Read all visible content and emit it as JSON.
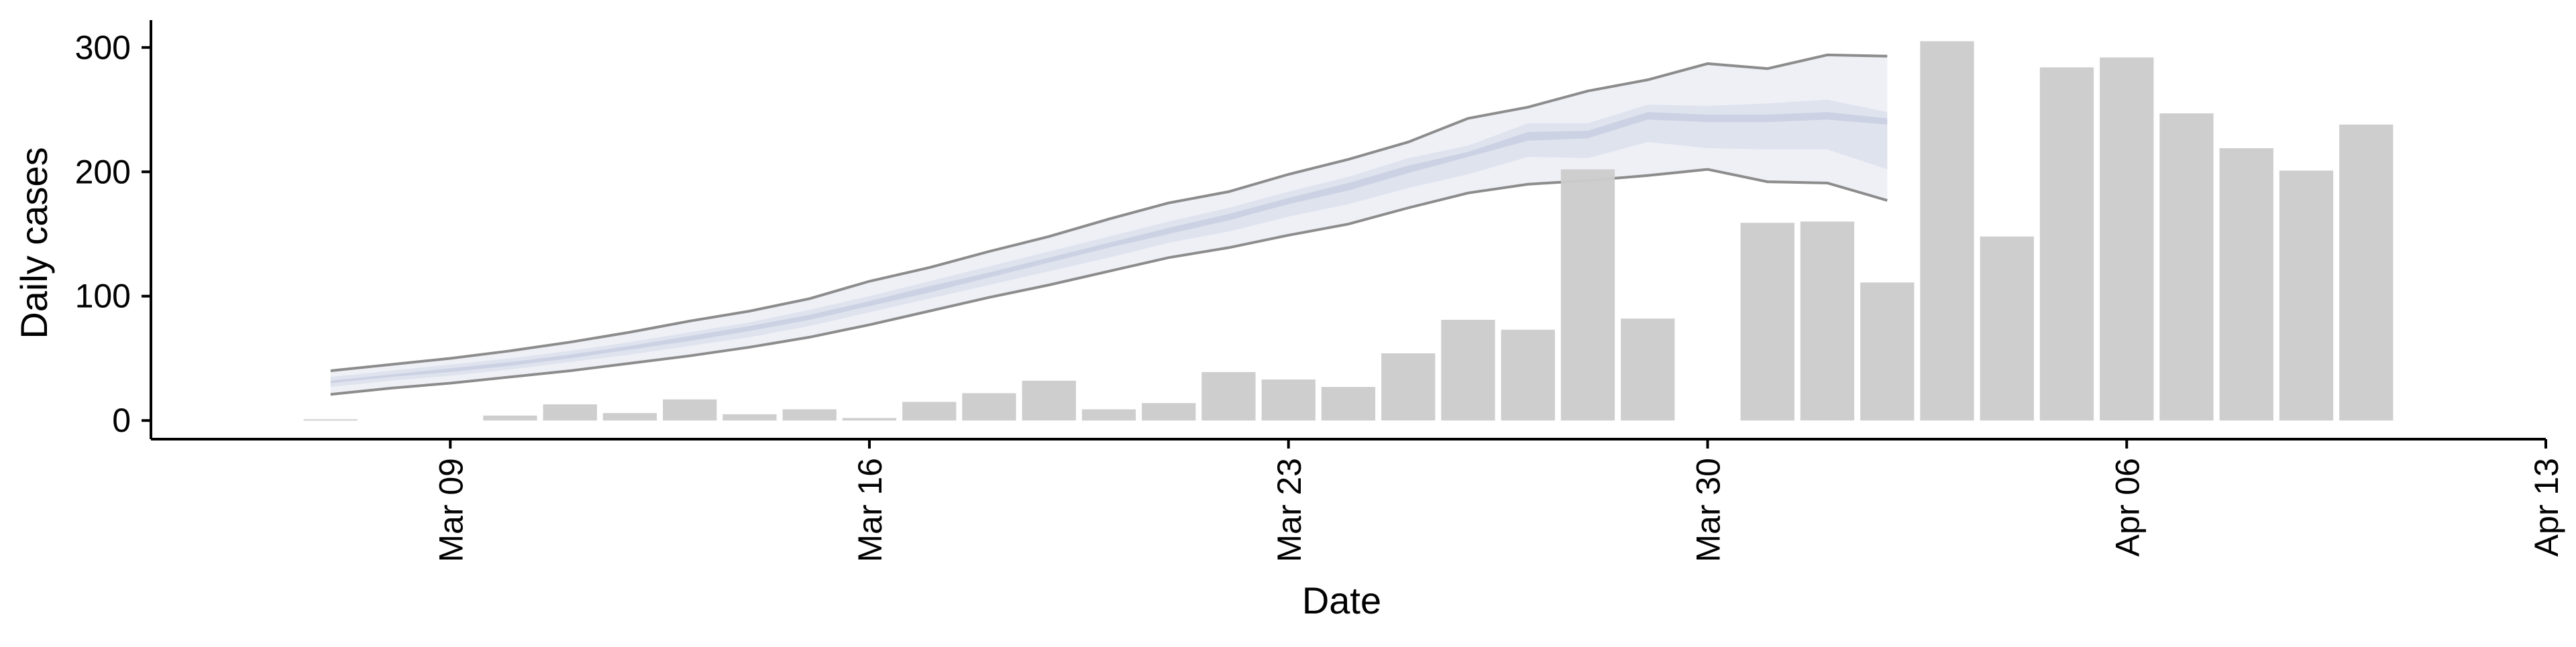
{
  "chart_data": {
    "type": "bar",
    "xlabel": "Date",
    "ylabel": "Daily cases",
    "x_ticks": [
      "Mar 09",
      "Mar 16",
      "Mar 23",
      "Mar 30",
      "Apr 06",
      "Apr 13"
    ],
    "x_tick_dates": [
      "2020-03-09",
      "2020-03-16",
      "2020-03-23",
      "2020-03-30",
      "2020-04-06",
      "2020-04-13"
    ],
    "y_ticks": [
      0,
      100,
      200,
      300
    ],
    "xlim": [
      "2020-03-04",
      "2020-04-13"
    ],
    "ylim": [
      -15,
      322
    ],
    "grid": false,
    "legend": "none",
    "colors": {
      "bars": "#cccccc",
      "band_outer": "#eef0f6",
      "band_mid": "#dfe3ee",
      "band_inner": "#ccd2e4",
      "band_edge": "#8c8c8c",
      "band_edge_light": "#b8b8b8"
    },
    "bars": [
      {
        "date": "2020-03-07",
        "value": 1
      },
      {
        "date": "2020-03-10",
        "value": 4
      },
      {
        "date": "2020-03-11",
        "value": 13
      },
      {
        "date": "2020-03-12",
        "value": 6
      },
      {
        "date": "2020-03-13",
        "value": 17
      },
      {
        "date": "2020-03-14",
        "value": 5
      },
      {
        "date": "2020-03-15",
        "value": 9
      },
      {
        "date": "2020-03-16",
        "value": 2
      },
      {
        "date": "2020-03-17",
        "value": 15
      },
      {
        "date": "2020-03-18",
        "value": 22
      },
      {
        "date": "2020-03-19",
        "value": 32
      },
      {
        "date": "2020-03-20",
        "value": 9
      },
      {
        "date": "2020-03-21",
        "value": 14
      },
      {
        "date": "2020-03-22",
        "value": 39
      },
      {
        "date": "2020-03-23",
        "value": 33
      },
      {
        "date": "2020-03-24",
        "value": 27
      },
      {
        "date": "2020-03-25",
        "value": 54
      },
      {
        "date": "2020-03-26",
        "value": 81
      },
      {
        "date": "2020-03-27",
        "value": 73
      },
      {
        "date": "2020-03-28",
        "value": 202
      },
      {
        "date": "2020-03-29",
        "value": 82
      },
      {
        "date": "2020-03-31",
        "value": 159
      },
      {
        "date": "2020-04-01",
        "value": 160
      },
      {
        "date": "2020-04-02",
        "value": 111
      },
      {
        "date": "2020-04-03",
        "value": 305
      },
      {
        "date": "2020-04-04",
        "value": 148
      },
      {
        "date": "2020-04-05",
        "value": 284
      },
      {
        "date": "2020-04-06",
        "value": 292
      },
      {
        "date": "2020-04-07",
        "value": 247
      },
      {
        "date": "2020-04-08",
        "value": 219
      },
      {
        "date": "2020-04-09",
        "value": 201
      },
      {
        "date": "2020-04-10",
        "value": 238
      }
    ],
    "estimate_band": {
      "dates": [
        "2020-03-07",
        "2020-03-08",
        "2020-03-09",
        "2020-03-10",
        "2020-03-11",
        "2020-03-12",
        "2020-03-13",
        "2020-03-14",
        "2020-03-15",
        "2020-03-16",
        "2020-03-17",
        "2020-03-18",
        "2020-03-19",
        "2020-03-20",
        "2020-03-21",
        "2020-03-22",
        "2020-03-23",
        "2020-03-24",
        "2020-03-25",
        "2020-03-26",
        "2020-03-27",
        "2020-03-28",
        "2020-03-29",
        "2020-03-30",
        "2020-03-31",
        "2020-04-01",
        "2020-04-02"
      ],
      "lower_90": [
        21,
        26,
        30,
        35,
        40,
        46,
        52,
        59,
        67,
        77,
        88,
        99,
        109,
        120,
        131,
        139,
        149,
        158,
        171,
        183,
        190,
        193,
        197,
        202,
        192,
        191,
        177
      ],
      "upper_90": [
        40,
        45,
        50,
        56,
        63,
        71,
        80,
        88,
        98,
        112,
        123,
        136,
        148,
        162,
        175,
        184,
        198,
        210,
        224,
        243,
        252,
        265,
        274,
        287,
        283,
        294,
        293
      ],
      "lower_50": [
        27,
        32,
        36,
        41,
        47,
        53,
        60,
        67,
        76,
        87,
        98,
        109,
        120,
        131,
        143,
        152,
        164,
        174,
        187,
        198,
        212,
        211,
        224,
        219,
        218,
        218,
        202
      ],
      "upper_50": [
        35,
        40,
        45,
        50,
        56,
        63,
        71,
        79,
        89,
        100,
        112,
        124,
        136,
        148,
        160,
        171,
        184,
        196,
        211,
        221,
        239,
        239,
        254,
        253,
        255,
        258,
        248
      ],
      "lower_20": [
        30,
        35,
        39,
        44,
        50,
        57,
        64,
        72,
        81,
        92,
        103,
        115,
        127,
        139,
        150,
        161,
        174,
        185,
        199,
        212,
        225,
        227,
        242,
        240,
        240,
        242,
        238
      ],
      "upper_20": [
        32,
        37,
        42,
        47,
        53,
        60,
        68,
        76,
        85,
        96,
        108,
        119,
        131,
        143,
        155,
        166,
        179,
        191,
        205,
        216,
        232,
        233,
        248,
        246,
        246,
        248,
        243
      ]
    }
  }
}
